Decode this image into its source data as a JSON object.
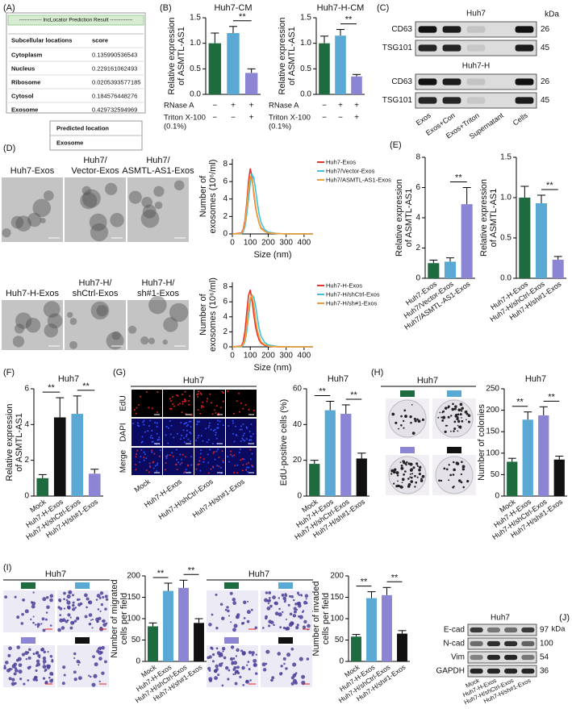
{
  "panel_labels": [
    "(A)",
    "(B)",
    "(C)",
    "(D)",
    "(E)",
    "(F)",
    "(G)",
    "(H)",
    "(I)",
    "(J)"
  ],
  "lnclocator": {
    "title": "------------- lncLocator Prediction Result -------------",
    "columns": [
      "Subcellular locations",
      "score"
    ],
    "rows": [
      [
        "Cytoplasm",
        0.135990536543
      ],
      [
        "Nucleus",
        0.229161062493
      ],
      [
        "Ribosome",
        0.0205393577185
      ],
      [
        "Cytosol",
        0.184576448276
      ],
      [
        "Exosome",
        0.429732594969
      ]
    ],
    "predicted": {
      "label": "Predicted location",
      "value": "Exosome"
    }
  },
  "blot_c": {
    "unit": "kDa",
    "lanes": [
      "Exos",
      "Exos+Con",
      "Exos+Triton",
      "Supernatant",
      "Cells"
    ],
    "blocks": [
      {
        "title": "Huh7",
        "rows": [
          {
            "name": "CD63",
            "kda": 26
          },
          {
            "name": "TSG101",
            "kda": 45
          }
        ]
      },
      {
        "title": "Huh7-H",
        "rows": [
          {
            "name": "CD63",
            "kda": 26
          },
          {
            "name": "TSG101",
            "kda": 45
          }
        ]
      }
    ]
  },
  "micrographs_d": [
    [
      "Huh7-Exos"
    ],
    [
      "Huh7/",
      "Vector-Exos"
    ],
    [
      "Huh7/",
      "ASMTL-AS1-Exos"
    ],
    [
      "Huh7-H-Exos"
    ],
    [
      "Huh7-H/",
      "shCtrl-Exos"
    ],
    [
      "Huh7-H/",
      "sh#1-Exos"
    ]
  ],
  "edu_g": {
    "title": "Huh7",
    "rows": [
      "EdU",
      "DAPI",
      "Merge"
    ],
    "columns": [
      "Mock",
      "Huh7-H-Exos",
      "Huh7-H/shCtrl-Exos",
      "Huh7-H/sh#1-Exos"
    ]
  },
  "colony_h": {
    "title": "Huh7"
  },
  "transwell_i": {
    "migration_title": "Huh7",
    "invasion_title": "Huh7"
  },
  "blot_j": {
    "title": "Huh7",
    "unit": "kDa",
    "rows": [
      {
        "name": "E-cad",
        "kda": 97
      },
      {
        "name": "N-cad",
        "kda": 100
      },
      {
        "name": "Vim",
        "kda": 54
      },
      {
        "name": "GAPDH",
        "kda": 36
      }
    ],
    "lanes": [
      "Mock",
      "Huh7-H-Exos",
      "Huh7-H/shCtrl-Exos",
      "Huh7-H/sh#1-Exos"
    ]
  },
  "chart_data": [
    {
      "type": "bar",
      "title": "Huh7-CM",
      "ylabel": [
        "Relative expression",
        "of ASMTL-AS1"
      ],
      "values": [
        1,
        1.2,
        0.42
      ],
      "errors": [
        0.2,
        0.13,
        0.08
      ],
      "colors": [
        "#1d6b3e",
        "#5aa9d4",
        "#8b85d3"
      ],
      "ylim": [
        0,
        1.5
      ],
      "yticks": [
        {
          "value": 0,
          "label": "0.0"
        },
        0.5,
        {
          "value": 1,
          "label": "1.0"
        },
        1.5
      ],
      "annotations": [
        {
          "text": "**",
          "between": [
            1,
            2
          ]
        }
      ],
      "treatments": [
        {
          "name": [
            "RNase A"
          ],
          "marks": [
            "−",
            "+",
            "+"
          ]
        },
        {
          "name": [
            "Triton X-100",
            "(0.1%)"
          ],
          "marks": [
            "−",
            "−",
            "+"
          ]
        }
      ]
    },
    {
      "type": "bar",
      "title": "Huh7-H-CM",
      "ylabel": [
        "Relative expression",
        "of ASMTL-AS1"
      ],
      "values": [
        1,
        1.15,
        0.35
      ],
      "errors": [
        0.14,
        0.12,
        0.04
      ],
      "colors": [
        "#1d6b3e",
        "#5aa9d4",
        "#8b85d3"
      ],
      "ylim": [
        0,
        1.5
      ],
      "yticks": [
        {
          "value": 0,
          "label": "0.0"
        },
        0.5,
        {
          "value": 1,
          "label": "1.0"
        },
        1.5
      ],
      "annotations": [
        {
          "text": "**",
          "between": [
            1,
            2
          ]
        }
      ],
      "treatments": [
        {
          "name": [
            "RNase A"
          ],
          "marks": [
            "−",
            "+",
            "+"
          ]
        },
        {
          "name": [
            "Triton X-100",
            "(0.1%)"
          ],
          "marks": [
            "−",
            "−",
            "+"
          ]
        }
      ]
    },
    {
      "type": "line",
      "ylabel": [
        "Number of",
        "exosomes (10⁶/ml)"
      ],
      "xlabel": "Size (nm)",
      "x": [
        0,
        50,
        60,
        70,
        80,
        90,
        100,
        110,
        120,
        130,
        140,
        150,
        160,
        180,
        200,
        250,
        300,
        450
      ],
      "series": [
        {
          "name": "Huh7-Exos",
          "color": "#e8332a",
          "values": [
            0,
            0.1,
            0.5,
            1.5,
            3.5,
            6,
            7.5,
            6.5,
            4.5,
            3,
            2,
            1.2,
            0.7,
            0.3,
            0.15,
            0.05,
            0,
            0
          ]
        },
        {
          "name": "Huh7/Vector-Exos",
          "color": "#3ec1e0",
          "values": [
            0,
            0,
            0.2,
            0.8,
            2.2,
            4,
            5.8,
            6.8,
            6.4,
            5,
            3.5,
            2.2,
            1.3,
            0.5,
            0.2,
            0.05,
            0,
            0
          ]
        },
        {
          "name": "Huh7/ASMTL-AS1-Exos",
          "color": "#f0a030",
          "values": [
            0,
            0.05,
            0.4,
            1.2,
            3,
            5.2,
            6.6,
            6.2,
            4.8,
            3.2,
            2,
            1.2,
            0.6,
            0.3,
            0.1,
            0.05,
            0,
            0
          ]
        }
      ],
      "xlim": [
        0,
        450
      ],
      "xticks": [
        0,
        100,
        200,
        300,
        400
      ],
      "ylim": [
        0,
        8.6
      ],
      "yticks": [
        0,
        2,
        4,
        6,
        8
      ],
      "legend": "right"
    },
    {
      "type": "line",
      "ylabel": [
        "Number of",
        "exosomes (10⁶/ml)"
      ],
      "xlabel": "Size (nm)",
      "x": [
        0,
        50,
        60,
        70,
        80,
        90,
        100,
        110,
        120,
        130,
        140,
        150,
        160,
        180,
        200,
        250,
        300,
        450
      ],
      "series": [
        {
          "name": "Huh7-H-Exos",
          "color": "#e8332a",
          "values": [
            0,
            0.1,
            0.6,
            2,
            4.5,
            6.8,
            7.6,
            6.2,
            4.2,
            2.6,
            1.6,
            0.9,
            0.5,
            0.2,
            0.1,
            0,
            0,
            0
          ]
        },
        {
          "name": "Huh7-H/shCtrl-Exos",
          "color": "#3ec1e0",
          "values": [
            0,
            0,
            0.2,
            0.7,
            2,
            4,
            6,
            6.9,
            6.6,
            5.4,
            3.8,
            2.4,
            1.4,
            0.6,
            0.25,
            0.05,
            0,
            0
          ]
        },
        {
          "name": "Huh7-H/sh#1-Exos",
          "color": "#f0a030",
          "values": [
            0,
            0.05,
            0.3,
            1,
            2.8,
            5,
            6.5,
            6.8,
            5.5,
            3.6,
            2.2,
            1.3,
            0.7,
            0.3,
            0.1,
            0.02,
            0,
            0
          ]
        }
      ],
      "xlim": [
        0,
        450
      ],
      "xticks": [
        0,
        100,
        200,
        300,
        400
      ],
      "ylim": [
        0,
        8.6
      ],
      "yticks": [
        0,
        2,
        4,
        6,
        8
      ],
      "legend": "right"
    },
    {
      "type": "bar",
      "ylabel": [
        "Relative expression",
        "of ASMTL-AS1"
      ],
      "categories": [
        "Huh7-Exos",
        "Huh7/Vector-Exos",
        "Huh7/ASMTL-AS1-Exos"
      ],
      "values": [
        1,
        1.1,
        4.9
      ],
      "errors": [
        0.2,
        0.25,
        1.1
      ],
      "colors": [
        "#1d6b3e",
        "#5aa9d4",
        "#8b85d3"
      ],
      "ylim": [
        0,
        8
      ],
      "yticks": [
        0,
        2,
        4,
        6,
        8
      ],
      "annotations": [
        {
          "text": "**",
          "between": [
            1,
            2
          ]
        }
      ]
    },
    {
      "type": "bar",
      "ylabel": [
        "Relative expression",
        "of ASMTL-AS1"
      ],
      "categories": [
        "Huh7-H-Exos",
        "Huh7-H/shCtrl-Exos",
        "Huh7-H/sh#1-Exos"
      ],
      "values": [
        1,
        0.93,
        0.23
      ],
      "errors": [
        0.14,
        0.1,
        0.04
      ],
      "colors": [
        "#1d6b3e",
        "#5aa9d4",
        "#8b85d3"
      ],
      "ylim": [
        0,
        1.5
      ],
      "yticks": [
        {
          "value": 0,
          "label": "0.0"
        },
        0.5,
        {
          "value": 1,
          "label": "1.0"
        },
        1.5
      ],
      "annotations": [
        {
          "text": "**",
          "between": [
            1,
            2
          ]
        }
      ]
    },
    {
      "type": "bar",
      "title": "Huh7",
      "ylabel": [
        "Relative expression",
        "of ASMTL-AS1"
      ],
      "categories": [
        "Mock",
        "Huh7-H-Exos",
        "Huh7-H/shCtrl-Exos",
        "Huh7-H/sh#1-Exos"
      ],
      "values": [
        1,
        4.4,
        4.6,
        1.25
      ],
      "errors": [
        0.2,
        1.1,
        1,
        0.25
      ],
      "colors": [
        "#1d6b3e",
        "#111111",
        "#5aa9d4",
        "#8b85d3"
      ],
      "ylim": [
        0,
        6
      ],
      "yticks": [
        0,
        2,
        4,
        6
      ],
      "annotations": [
        {
          "text": "**",
          "between": [
            0,
            1
          ]
        },
        {
          "text": "**",
          "between": [
            2,
            3
          ]
        }
      ]
    },
    {
      "type": "bar",
      "title": "Huh7",
      "ylabel": [
        "EdU-positive cells (%)"
      ],
      "categories": [
        "Mock",
        "Huh7-H-Exos",
        "Huh7-H/shCtrl-Exos",
        "Huh7-H/sh#1-Exos"
      ],
      "values": [
        18,
        48,
        46,
        21
      ],
      "errors": [
        2,
        5,
        5,
        3
      ],
      "colors": [
        "#1d6b3e",
        "#5aa9d4",
        "#8b85d3",
        "#111111"
      ],
      "ylim": [
        0,
        60
      ],
      "yticks": [
        0,
        20,
        40,
        60
      ],
      "annotations": [
        {
          "text": "**",
          "between": [
            0,
            1
          ]
        },
        {
          "text": "**",
          "between": [
            2,
            3
          ]
        }
      ]
    },
    {
      "type": "bar",
      "title": "Huh7",
      "ylabel": [
        "Number of colonies"
      ],
      "categories": [
        "Mock",
        "Huh7-H-Exos",
        "Huh7-H/shCtrl-Exos",
        "Huh7-H/sh#1-Exos"
      ],
      "values": [
        80,
        178,
        188,
        85
      ],
      "errors": [
        8,
        18,
        20,
        8
      ],
      "colors": [
        "#1d6b3e",
        "#5aa9d4",
        "#8b85d3",
        "#111111"
      ],
      "ylim": [
        0,
        250
      ],
      "yticks": [
        0,
        50,
        100,
        150,
        200,
        250
      ],
      "annotations": [
        {
          "text": "**",
          "between": [
            0,
            1
          ]
        },
        {
          "text": "**",
          "between": [
            2,
            3
          ]
        }
      ]
    },
    {
      "type": "bar",
      "ylabel": [
        "Number of migrated",
        "cells per field"
      ],
      "categories": [
        "Mock",
        "Huh7-H-Exos",
        "Huh7-H/shCtrl-Exos",
        "Huh7-H/sh#1-Exos"
      ],
      "values": [
        82,
        165,
        172,
        90
      ],
      "errors": [
        8,
        18,
        18,
        10
      ],
      "colors": [
        "#1d6b3e",
        "#5aa9d4",
        "#8b85d3",
        "#111111"
      ],
      "ylim": [
        0,
        200
      ],
      "yticks": [
        0,
        50,
        100,
        150,
        200
      ],
      "annotations": [
        {
          "text": "**",
          "between": [
            0,
            1
          ]
        },
        {
          "text": "**",
          "between": [
            2,
            3
          ]
        }
      ]
    },
    {
      "type": "bar",
      "ylabel": [
        "Number of invaded",
        "cells per field"
      ],
      "categories": [
        "Mock",
        "Huh7-H-Exos",
        "Huh7-H/shCtrl-Exos",
        "Huh7-H/sh#1-Exos"
      ],
      "values": [
        58,
        148,
        155,
        65
      ],
      "errors": [
        5,
        15,
        18,
        7
      ],
      "colors": [
        "#1d6b3e",
        "#5aa9d4",
        "#8b85d3",
        "#111111"
      ],
      "ylim": [
        0,
        200
      ],
      "yticks": [
        0,
        50,
        100,
        150,
        200
      ],
      "annotations": [
        {
          "text": "**",
          "between": [
            0,
            1
          ]
        },
        {
          "text": "**",
          "between": [
            2,
            3
          ]
        }
      ]
    }
  ]
}
